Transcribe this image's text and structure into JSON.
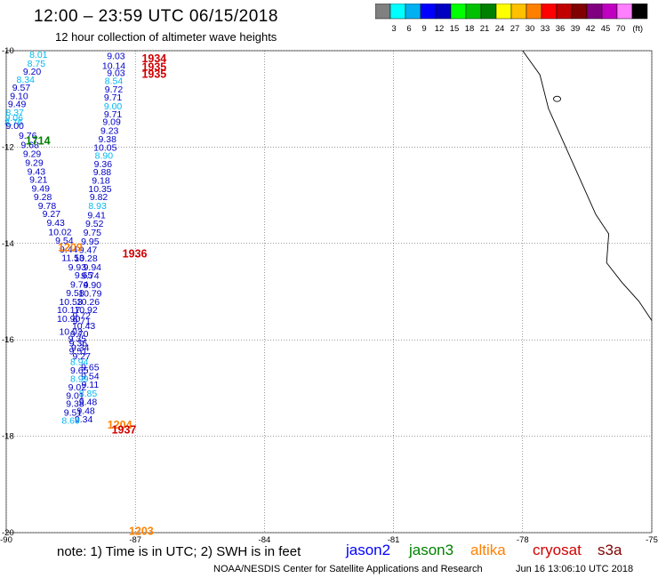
{
  "header": {
    "title": "12:00 – 23:59 UTC 06/15/2018",
    "subtitle": "12 hour collection of altimeter wave heights"
  },
  "colorbar": {
    "colors": [
      "#808080",
      "#00ffff",
      "#00b0f0",
      "#0000ff",
      "#0000c0",
      "#00ff00",
      "#00c000",
      "#008000",
      "#ffff00",
      "#ffc000",
      "#ff8000",
      "#ff0000",
      "#c00000",
      "#800000",
      "#800080",
      "#c000c0",
      "#ff80ff",
      "#000000"
    ],
    "labels": [
      "3",
      "6",
      "9",
      "12",
      "15",
      "18",
      "21",
      "24",
      "27",
      "30",
      "33",
      "36",
      "39",
      "42",
      "45",
      "70"
    ],
    "unit": "(ft)"
  },
  "chart_data": {
    "type": "scatter",
    "xlim": [
      -90,
      -75
    ],
    "ylim": [
      -20,
      -10
    ],
    "x_ticks": [
      "-90",
      "-87",
      "-84",
      "-81",
      "-78",
      "-75"
    ],
    "y_ticks": [
      "-10",
      "-12",
      "-14",
      "-16",
      "-18",
      "-20"
    ],
    "grid": true,
    "coastline": [
      [
        -78.0,
        -10.0
      ],
      [
        -77.6,
        -10.5
      ],
      [
        -77.4,
        -11.2
      ],
      [
        -77.0,
        -12.0
      ],
      [
        -76.6,
        -12.8
      ],
      [
        -76.3,
        -13.4
      ],
      [
        -76.0,
        -13.8
      ],
      [
        -76.05,
        -14.4
      ],
      [
        -75.7,
        -14.8
      ],
      [
        -75.3,
        -15.2
      ],
      [
        -75.0,
        -15.6
      ]
    ],
    "islands": [
      [
        -77.2,
        -11.0
      ]
    ],
    "passes": [
      {
        "time": "1934",
        "color": "#d00000",
        "lon": -86.85,
        "lat": -10.15
      },
      {
        "time": "1935",
        "color": "#d00000",
        "lon": -86.85,
        "lat": -10.32
      },
      {
        "time": "1935",
        "color": "#d00000",
        "lon": -86.85,
        "lat": -10.47
      },
      {
        "time": "1714",
        "color": "#008000",
        "lon": -89.55,
        "lat": -11.85
      },
      {
        "time": "1209",
        "color": "#ff8000",
        "lon": -88.8,
        "lat": -14.07
      },
      {
        "time": "1936",
        "color": "#d00000",
        "lon": -87.3,
        "lat": -14.2
      },
      {
        "time": "1204",
        "color": "#ff8000",
        "lon": -87.65,
        "lat": -17.75
      },
      {
        "time": "1937",
        "color": "#d00000",
        "lon": -87.55,
        "lat": -17.85
      },
      {
        "time": "1203",
        "color": "#ff8000",
        "lon": -87.15,
        "lat": -19.95
      }
    ],
    "points": [
      {
        "lon": -89.25,
        "lat": -10.07,
        "value": "8.01",
        "color": "#00b8f0"
      },
      {
        "lon": -87.45,
        "lat": -10.1,
        "value": "9.03",
        "color": "#0000c8"
      },
      {
        "lon": -89.3,
        "lat": -10.26,
        "value": "8.75",
        "color": "#00b8f0"
      },
      {
        "lon": -87.5,
        "lat": -10.3,
        "value": "10.14",
        "color": "#0000c8"
      },
      {
        "lon": -89.4,
        "lat": -10.42,
        "value": "9.20",
        "color": "#0000c8"
      },
      {
        "lon": -87.45,
        "lat": -10.45,
        "value": "9.03",
        "color": "#0000c8"
      },
      {
        "lon": -89.55,
        "lat": -10.59,
        "value": "8.34",
        "color": "#00b8f0"
      },
      {
        "lon": -87.5,
        "lat": -10.62,
        "value": "8.54",
        "color": "#00b8f0"
      },
      {
        "lon": -89.65,
        "lat": -10.76,
        "value": "9.57",
        "color": "#0000c8"
      },
      {
        "lon": -87.5,
        "lat": -10.79,
        "value": "9.72",
        "color": "#0000c8"
      },
      {
        "lon": -89.7,
        "lat": -10.93,
        "value": "9.10",
        "color": "#0000c8"
      },
      {
        "lon": -87.52,
        "lat": -10.96,
        "value": "9.71",
        "color": "#0000c8"
      },
      {
        "lon": -89.75,
        "lat": -11.1,
        "value": "9.49",
        "color": "#0000c8"
      },
      {
        "lon": -87.52,
        "lat": -11.14,
        "value": "9.00",
        "color": "#00b8f0"
      },
      {
        "lon": -89.8,
        "lat": -11.27,
        "value": "8.37",
        "color": "#00b8f0"
      },
      {
        "lon": -87.52,
        "lat": -11.31,
        "value": "9.71",
        "color": "#0000c8"
      },
      {
        "lon": -89.82,
        "lat": -11.38,
        "value": "9.06",
        "color": "#00b8f0"
      },
      {
        "lon": -89.83,
        "lat": -11.48,
        "value": "8.76",
        "color": "#00b8f0"
      },
      {
        "lon": -87.55,
        "lat": -11.47,
        "value": "9.09",
        "color": "#0000c8"
      },
      {
        "lon": -89.8,
        "lat": -11.55,
        "value": "9.00",
        "color": "#0000c8"
      },
      {
        "lon": -89.5,
        "lat": -11.75,
        "value": "9.76",
        "color": "#0000c8"
      },
      {
        "lon": -87.6,
        "lat": -11.65,
        "value": "9.23",
        "color": "#0000c8"
      },
      {
        "lon": -89.45,
        "lat": -11.95,
        "value": "9.68",
        "color": "#0000c8"
      },
      {
        "lon": -87.65,
        "lat": -11.83,
        "value": "9.38",
        "color": "#0000c8"
      },
      {
        "lon": -89.4,
        "lat": -12.13,
        "value": "9.29",
        "color": "#0000c8"
      },
      {
        "lon": -87.7,
        "lat": -12.0,
        "value": "10.05",
        "color": "#0000c8"
      },
      {
        "lon": -89.35,
        "lat": -12.32,
        "value": "9.29",
        "color": "#0000c8"
      },
      {
        "lon": -87.73,
        "lat": -12.17,
        "value": "8.90",
        "color": "#00b8f0"
      },
      {
        "lon": -89.3,
        "lat": -12.5,
        "value": "9.43",
        "color": "#0000c8"
      },
      {
        "lon": -87.75,
        "lat": -12.34,
        "value": "9.36",
        "color": "#0000c8"
      },
      {
        "lon": -89.25,
        "lat": -12.67,
        "value": "9.21",
        "color": "#0000c8"
      },
      {
        "lon": -87.77,
        "lat": -12.51,
        "value": "9.88",
        "color": "#0000c8"
      },
      {
        "lon": -89.2,
        "lat": -12.85,
        "value": "9.49",
        "color": "#0000c8"
      },
      {
        "lon": -87.8,
        "lat": -12.68,
        "value": "9.18",
        "color": "#0000c8"
      },
      {
        "lon": -89.15,
        "lat": -13.03,
        "value": "9.28",
        "color": "#0000c8"
      },
      {
        "lon": -87.82,
        "lat": -12.86,
        "value": "10.35",
        "color": "#0000c8"
      },
      {
        "lon": -89.05,
        "lat": -13.21,
        "value": "9.78",
        "color": "#0000c8"
      },
      {
        "lon": -87.85,
        "lat": -13.03,
        "value": "9.82",
        "color": "#0000c8"
      },
      {
        "lon": -88.95,
        "lat": -13.38,
        "value": "9.27",
        "color": "#0000c8"
      },
      {
        "lon": -87.88,
        "lat": -13.21,
        "value": "8.93",
        "color": "#00b8f0"
      },
      {
        "lon": -88.85,
        "lat": -13.56,
        "value": "9.43",
        "color": "#0000c8"
      },
      {
        "lon": -87.9,
        "lat": -13.4,
        "value": "9.41",
        "color": "#0000c8"
      },
      {
        "lon": -88.75,
        "lat": -13.75,
        "value": "10.02",
        "color": "#0000c8"
      },
      {
        "lon": -87.95,
        "lat": -13.58,
        "value": "9.52",
        "color": "#0000c8"
      },
      {
        "lon": -88.65,
        "lat": -13.93,
        "value": "9.54",
        "color": "#0000c8"
      },
      {
        "lon": -88.0,
        "lat": -13.76,
        "value": "9.75",
        "color": "#0000c8"
      },
      {
        "lon": -88.55,
        "lat": -14.11,
        "value": "9.44",
        "color": "#0000c8"
      },
      {
        "lon": -88.05,
        "lat": -13.95,
        "value": "9.95",
        "color": "#0000c8"
      },
      {
        "lon": -88.45,
        "lat": -14.29,
        "value": "11.53",
        "color": "#0000c8"
      },
      {
        "lon": -88.1,
        "lat": -14.12,
        "value": "9.47",
        "color": "#0000c8"
      },
      {
        "lon": -88.35,
        "lat": -14.48,
        "value": "9.93",
        "color": "#0000c8"
      },
      {
        "lon": -88.15,
        "lat": -14.3,
        "value": "10.28",
        "color": "#0000c8"
      },
      {
        "lon": -88.2,
        "lat": -14.65,
        "value": "9.65",
        "color": "#0000c8"
      },
      {
        "lon": -88.0,
        "lat": -14.48,
        "value": "9.94",
        "color": "#0000c8"
      },
      {
        "lon": -88.3,
        "lat": -14.84,
        "value": "9.74",
        "color": "#0000c8"
      },
      {
        "lon": -88.05,
        "lat": -14.66,
        "value": "9.74",
        "color": "#0000c8"
      },
      {
        "lon": -88.0,
        "lat": -14.85,
        "value": "9.90",
        "color": "#0000c8"
      },
      {
        "lon": -88.4,
        "lat": -15.02,
        "value": "9.58",
        "color": "#0000c8"
      },
      {
        "lon": -88.05,
        "lat": -15.03,
        "value": "10.79",
        "color": "#0000c8"
      },
      {
        "lon": -88.5,
        "lat": -15.2,
        "value": "10.53",
        "color": "#0000c8"
      },
      {
        "lon": -88.1,
        "lat": -15.2,
        "value": "10.26",
        "color": "#0000c8"
      },
      {
        "lon": -88.55,
        "lat": -15.37,
        "value": "10.17",
        "color": "#0000c8"
      },
      {
        "lon": -88.15,
        "lat": -15.37,
        "value": "10.92",
        "color": "#0000c8"
      },
      {
        "lon": -88.25,
        "lat": -15.49,
        "value": "9.72",
        "color": "#0000c8"
      },
      {
        "lon": -88.55,
        "lat": -15.55,
        "value": "10.90",
        "color": "#0000c8"
      },
      {
        "lon": -88.25,
        "lat": -15.6,
        "value": "9.71",
        "color": "#0000c8"
      },
      {
        "lon": -88.2,
        "lat": -15.7,
        "value": "10.43",
        "color": "#0000c8"
      },
      {
        "lon": -88.5,
        "lat": -15.82,
        "value": "10.02",
        "color": "#0000c8"
      },
      {
        "lon": -88.3,
        "lat": -15.87,
        "value": "9.70",
        "color": "#0000c8"
      },
      {
        "lon": -88.35,
        "lat": -15.97,
        "value": "9.35",
        "color": "#0000c8"
      },
      {
        "lon": -88.33,
        "lat": -16.06,
        "value": "9.36",
        "color": "#0000c8"
      },
      {
        "lon": -88.28,
        "lat": -16.15,
        "value": "9.34",
        "color": "#0000c8"
      },
      {
        "lon": -88.33,
        "lat": -16.23,
        "value": "9.51",
        "color": "#0000c8"
      },
      {
        "lon": -88.25,
        "lat": -16.33,
        "value": "9.27",
        "color": "#0000c8"
      },
      {
        "lon": -88.3,
        "lat": -16.45,
        "value": "8.94",
        "color": "#00b8f0"
      },
      {
        "lon": -88.05,
        "lat": -16.56,
        "value": "9.65",
        "color": "#0000c8"
      },
      {
        "lon": -88.3,
        "lat": -16.62,
        "value": "9.65",
        "color": "#0000c8"
      },
      {
        "lon": -88.05,
        "lat": -16.74,
        "value": "9.54",
        "color": "#0000c8"
      },
      {
        "lon": -88.3,
        "lat": -16.8,
        "value": "8.99",
        "color": "#00b8f0"
      },
      {
        "lon": -88.05,
        "lat": -16.92,
        "value": "9.11",
        "color": "#0000c8"
      },
      {
        "lon": -88.35,
        "lat": -16.97,
        "value": "9.02",
        "color": "#0000c8"
      },
      {
        "lon": -88.1,
        "lat": -17.1,
        "value": "8.85",
        "color": "#00b8f0"
      },
      {
        "lon": -88.4,
        "lat": -17.15,
        "value": "9.01",
        "color": "#0000c8"
      },
      {
        "lon": -88.1,
        "lat": -17.28,
        "value": "9.48",
        "color": "#0000c8"
      },
      {
        "lon": -88.4,
        "lat": -17.32,
        "value": "9.38",
        "color": "#0000c8"
      },
      {
        "lon": -88.15,
        "lat": -17.46,
        "value": "9.48",
        "color": "#0000c8"
      },
      {
        "lon": -88.45,
        "lat": -17.5,
        "value": "9.51",
        "color": "#0000c8"
      },
      {
        "lon": -88.2,
        "lat": -17.64,
        "value": "9.34",
        "color": "#0000c8"
      },
      {
        "lon": -88.5,
        "lat": -17.67,
        "value": "8.69",
        "color": "#00b8f0"
      }
    ]
  },
  "footer": {
    "note": "note:  1) Time is in UTC;  2) SWH is in feet",
    "legend": [
      {
        "label": "jason2",
        "color": "#0000ff"
      },
      {
        "label": "jason3",
        "color": "#008000"
      },
      {
        "label": "altika",
        "color": "#ff8000"
      },
      {
        "label": "cryosat",
        "color": "#d00000"
      },
      {
        "label": "s3a",
        "color": "#800000"
      }
    ],
    "credit": "NOAA/NESDIS Center for Satellite Applications and Research",
    "timestamp": "Jun 16 13:06:10 UTC 2018"
  }
}
